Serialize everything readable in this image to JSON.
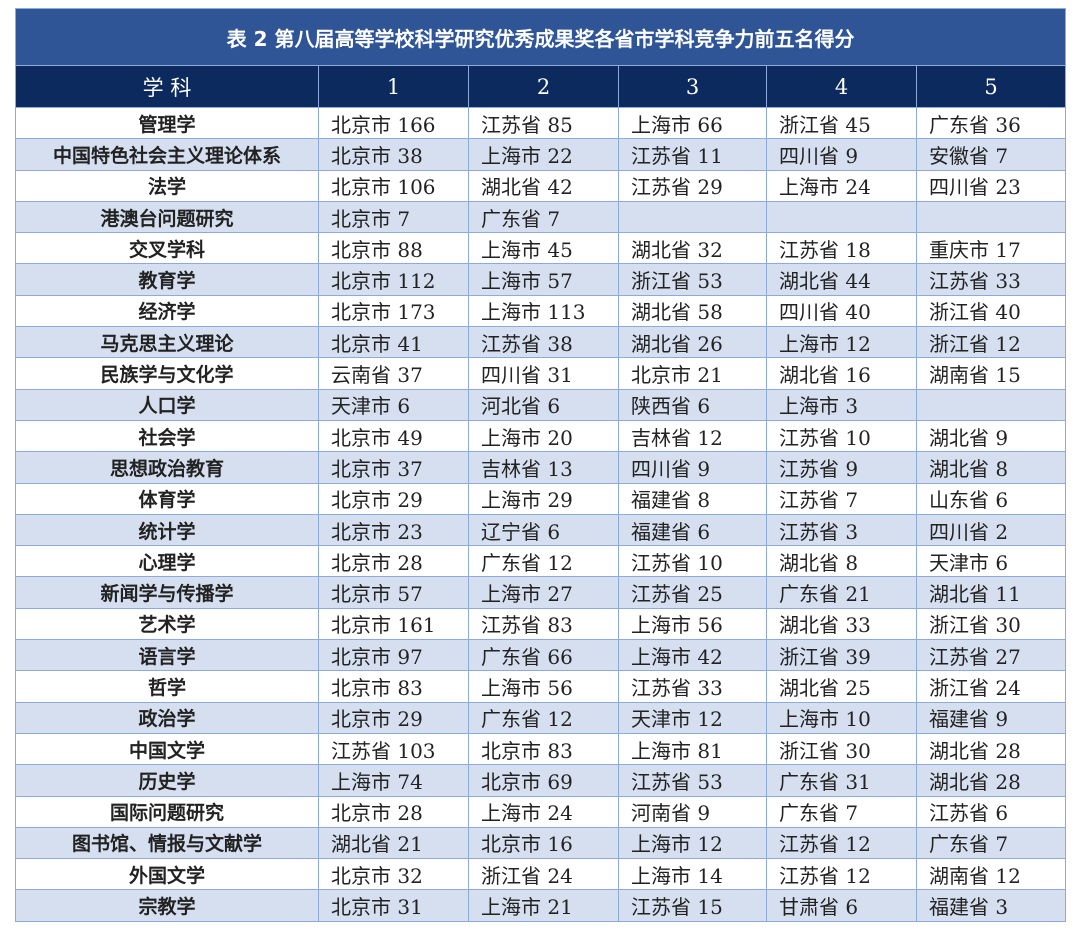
{
  "title": "表 2  第八届高等学校科学研究优秀成果奖各省市学科竞争力前五名得分",
  "columns": [
    "学  科",
    "1",
    "2",
    "3",
    "4",
    "5"
  ],
  "rows": [
    [
      "管理学",
      "北京市 166",
      "江苏省 85",
      "上海市 66",
      "浙江省 45",
      "广东省 36"
    ],
    [
      "中国特色社会主义理论体系",
      "北京市 38",
      "上海市 22",
      "江苏省 11",
      "四川省 9",
      "安徽省 7"
    ],
    [
      "法学",
      "北京市 106",
      "湖北省 42",
      "江苏省 29",
      "上海市 24",
      "四川省 23"
    ],
    [
      "港澳台问题研究",
      "北京市 7",
      "广东省 7",
      "",
      "",
      ""
    ],
    [
      "交叉学科",
      "北京市 88",
      "上海市 45",
      "湖北省 32",
      "江苏省 18",
      "重庆市 17"
    ],
    [
      "教育学",
      "北京市 112",
      "上海市 57",
      "浙江省 53",
      "湖北省 44",
      "江苏省 33"
    ],
    [
      "经济学",
      "北京市 173",
      "上海市 113",
      "湖北省 58",
      "四川省 40",
      "浙江省 40"
    ],
    [
      "马克思主义理论",
      "北京市 41",
      "江苏省 38",
      "湖北省 26",
      "上海市 12",
      "浙江省 12"
    ],
    [
      "民族学与文化学",
      "云南省 37",
      "四川省 31",
      "北京市 21",
      "湖北省 16",
      "湖南省 15"
    ],
    [
      "人口学",
      "天津市 6",
      "河北省 6",
      "陕西省 6",
      "上海市 3",
      ""
    ],
    [
      "社会学",
      "北京市 49",
      "上海市 20",
      "吉林省 12",
      "江苏省 10",
      "湖北省 9"
    ],
    [
      "思想政治教育",
      "北京市 37",
      "吉林省 13",
      "四川省 9",
      "江苏省 9",
      "湖北省 8"
    ],
    [
      "体育学",
      "北京市 29",
      "上海市 29",
      "福建省 8",
      "江苏省 7",
      "山东省 6"
    ],
    [
      "统计学",
      "北京市 23",
      "辽宁省 6",
      "福建省 6",
      "江苏省 3",
      "四川省 2"
    ],
    [
      "心理学",
      "北京市 28",
      "广东省 12",
      "江苏省 10",
      "湖北省 8",
      "天津市 6"
    ],
    [
      "新闻学与传播学",
      "北京市 57",
      "上海市 27",
      "江苏省 25",
      "广东省 21",
      "湖北省 11"
    ],
    [
      "艺术学",
      "北京市 161",
      "江苏省 83",
      "上海市 56",
      "湖北省 33",
      "浙江省 30"
    ],
    [
      "语言学",
      "北京市 97",
      "广东省 66",
      "上海市 42",
      "浙江省 39",
      "江苏省 27"
    ],
    [
      "哲学",
      "北京市 83",
      "上海市 56",
      "江苏省 33",
      "湖北省 25",
      "浙江省 24"
    ],
    [
      "政治学",
      "北京市 29",
      "广东省 12",
      "天津市 12",
      "上海市 10",
      "福建省 9"
    ],
    [
      "中国文学",
      "江苏省 103",
      "北京市 83",
      "上海市 81",
      "浙江省 30",
      "湖北省 28"
    ],
    [
      "历史学",
      "上海市 74",
      "北京市 69",
      "江苏省 53",
      "广东省 31",
      "湖北省 28"
    ],
    [
      "国际问题研究",
      "北京市 28",
      "上海市 24",
      "河南省 9",
      "广东省 7",
      "江苏省 6"
    ],
    [
      "图书馆、情报与文献学",
      "湖北省 21",
      "北京市 16",
      "上海市 12",
      "江苏省 12",
      "广东省 7"
    ],
    [
      "外国文学",
      "北京市 32",
      "浙江省 24",
      "上海市 14",
      "江苏省 12",
      "湖南省 12"
    ],
    [
      "宗教学",
      "北京市 31",
      "上海市 21",
      "江苏省 15",
      "甘肃省 6",
      "福建省 3"
    ]
  ],
  "colors": {
    "title_bg": "#2f5597",
    "header_bg": "#0c2a5e",
    "alt_row": "#d6dff0",
    "border": "#8eaadb"
  }
}
